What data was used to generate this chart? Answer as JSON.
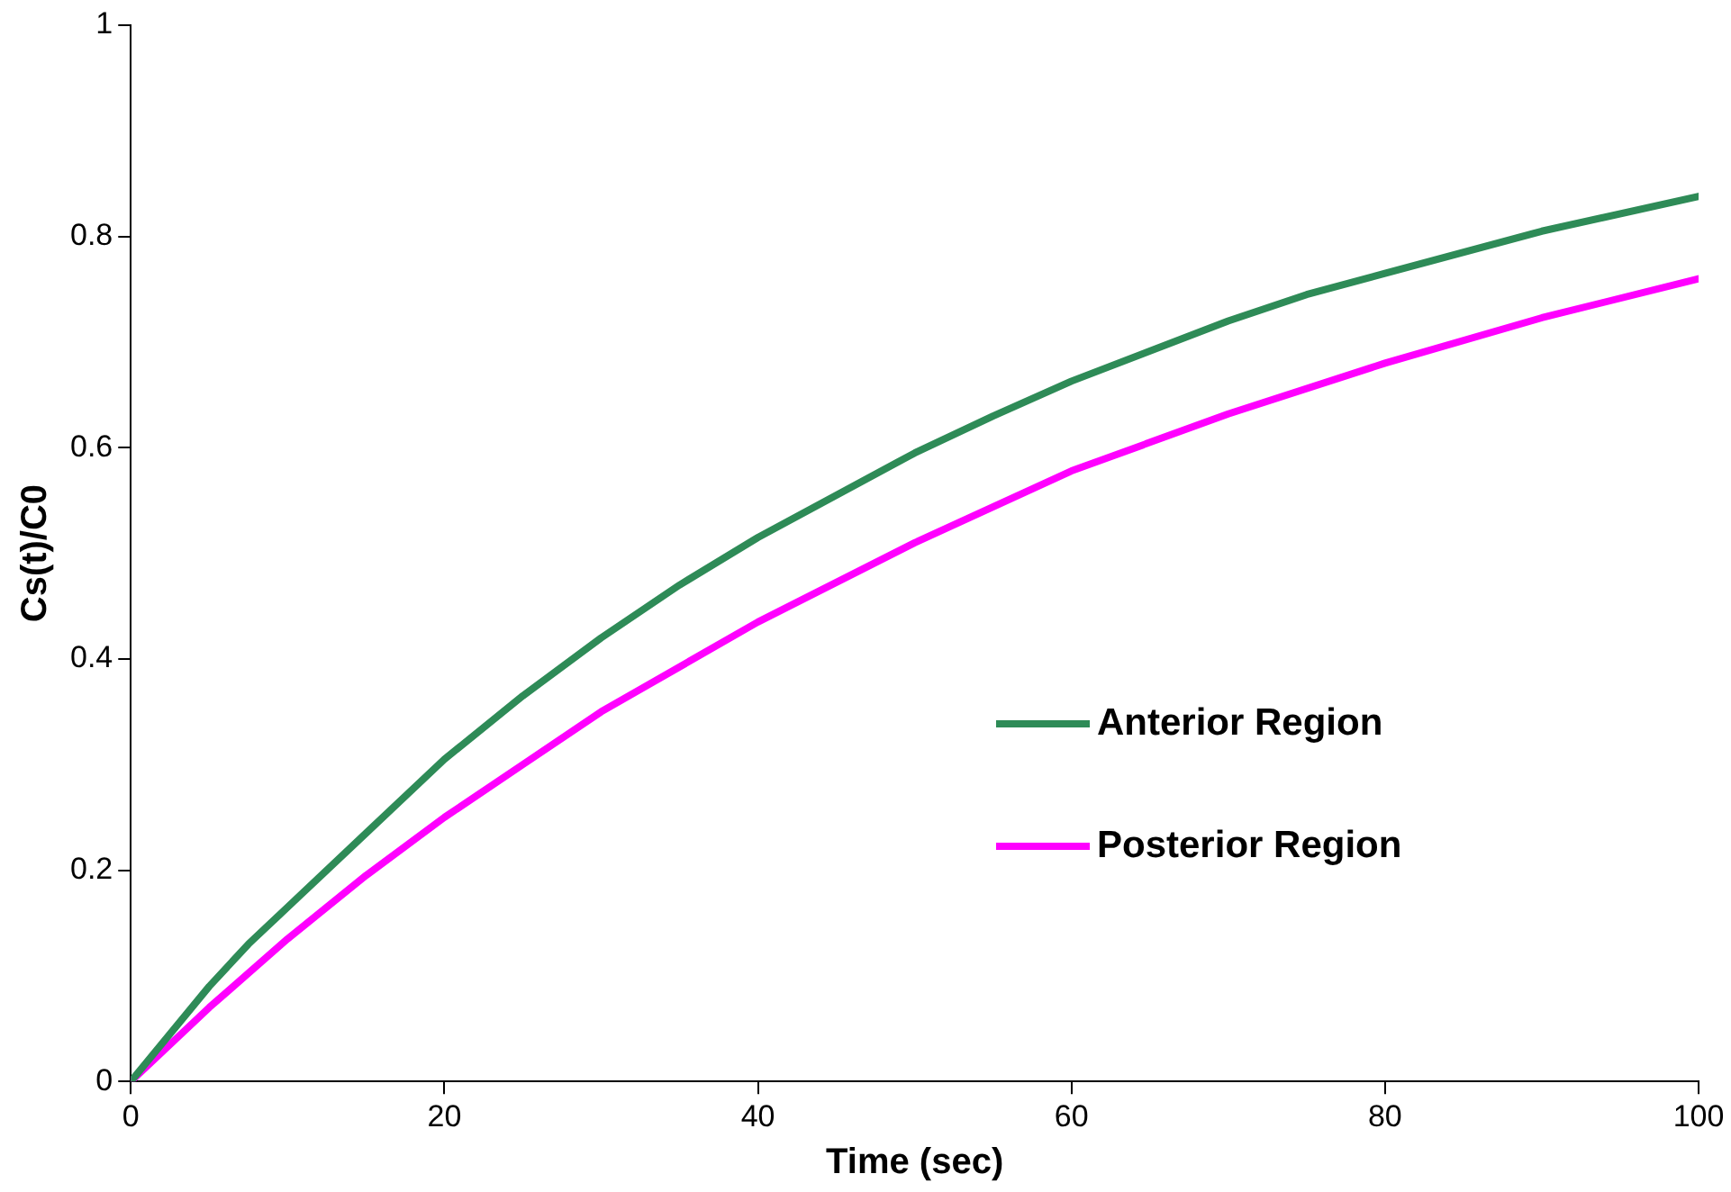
{
  "chart_data": {
    "type": "line",
    "xlabel": "Time (sec)",
    "ylabel": "Cs(t)/C0",
    "x": [
      0,
      5,
      7.5,
      10,
      15,
      20,
      25,
      30,
      35,
      40,
      50,
      55,
      60,
      70,
      75,
      80,
      90,
      100
    ],
    "series": [
      {
        "name": "Anterior Region",
        "color": "#2e8b57",
        "values": [
          0,
          0.09,
          0.13,
          0.165,
          0.235,
          0.305,
          0.365,
          0.42,
          0.47,
          0.515,
          0.595,
          0.63,
          0.663,
          0.72,
          0.745,
          0.765,
          0.805,
          0.838
        ]
      },
      {
        "name": "Posterior Region",
        "color": "#ff00ff",
        "x": [
          0,
          5,
          10,
          15,
          20,
          25,
          30,
          40,
          50,
          60,
          70,
          80,
          90,
          100
        ],
        "values": [
          0,
          0.07,
          0.135,
          0.195,
          0.25,
          0.3,
          0.35,
          0.435,
          0.51,
          0.578,
          0.632,
          0.68,
          0.723,
          0.76
        ]
      }
    ],
    "xlim": [
      0,
      100
    ],
    "xticks": [
      0,
      20,
      40,
      60,
      80,
      100
    ],
    "ylim": [
      0,
      1
    ],
    "yticks": [
      0,
      0.2,
      0.4,
      0.6,
      0.8,
      1
    ],
    "grid": false,
    "legend": "right",
    "marker": "none",
    "line_style": "solid"
  }
}
